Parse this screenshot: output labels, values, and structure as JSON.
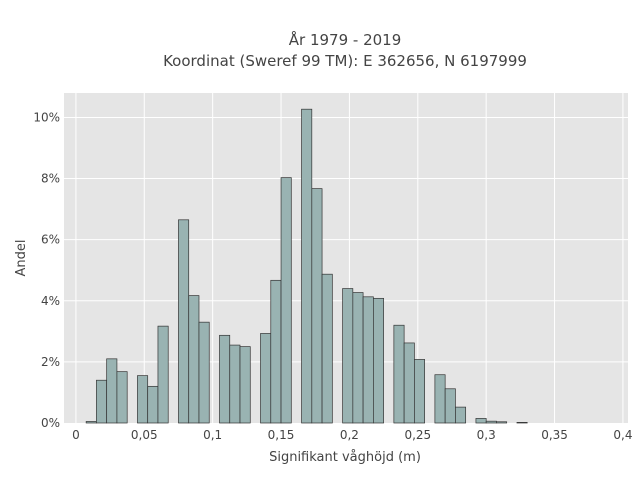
{
  "chart_data": {
    "type": "bar",
    "title_line1": "År 1979 - 2019",
    "title_line2": "Koordinat (Sweref 99 TM): E 362656, N 6197999",
    "xlabel": "Signifikant våghöjd (m)",
    "ylabel": "Andel",
    "xlim": [
      -0.0087,
      0.4037
    ],
    "ylim": [
      0,
      10.8
    ],
    "x_ticks": [
      0,
      0.05,
      0.1,
      0.15,
      0.2,
      0.25,
      0.3,
      0.35,
      0.4
    ],
    "x_tick_labels": [
      "0",
      "0,05",
      "0,1",
      "0,15",
      "0,2",
      "0,25",
      "0,3",
      "0,35",
      "0,4"
    ],
    "y_ticks": [
      0,
      2,
      4,
      6,
      8,
      10
    ],
    "y_tick_labels": [
      "0%",
      "2%",
      "4%",
      "6%",
      "8%",
      "10%"
    ],
    "bin_width": 0.0075,
    "series": [
      {
        "x": [
          0.0075,
          0.015,
          0.0225,
          0.03,
          0.0375,
          0.045,
          0.0525,
          0.06,
          0.0675,
          0.075,
          0.0825,
          0.09,
          0.0975,
          0.105,
          0.1125,
          0.12,
          0.1275,
          0.135,
          0.1425,
          0.15,
          0.1575,
          0.165,
          0.1725,
          0.18,
          0.1875,
          0.195,
          0.2025,
          0.21,
          0.2175,
          0.225,
          0.2325,
          0.24,
          0.2475,
          0.255,
          0.2625,
          0.27,
          0.2775,
          0.285,
          0.2925,
          0.3,
          0.3075,
          0.315,
          0.3225,
          0.33
        ],
        "values": [
          0.05,
          1.4,
          2.1,
          1.68,
          0,
          1.55,
          1.2,
          3.17,
          0,
          6.65,
          4.17,
          3.3,
          0,
          2.87,
          2.55,
          2.5,
          0,
          2.93,
          4.67,
          8.03,
          0,
          10.27,
          7.67,
          4.87,
          0,
          4.4,
          4.27,
          4.13,
          4.08,
          0,
          3.2,
          2.62,
          2.08,
          0,
          1.58,
          1.12,
          0.52,
          0,
          0.15,
          0.06,
          0.04,
          0,
          0.02,
          0
        ],
        "color": "#99b3b2",
        "edge_color": "#333333"
      }
    ],
    "grid": true,
    "plot_background": "#e5e5e5",
    "grid_color": "#ffffff"
  }
}
